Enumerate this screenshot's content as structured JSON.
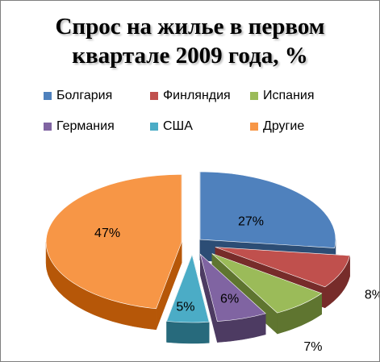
{
  "chart_data": {
    "type": "pie",
    "title": "Спрос на жилье в первом квартале 2009 года, %",
    "title_lines": [
      "Спрос на жилье в первом",
      "квартале 2009 года, %"
    ],
    "legend_position": "top",
    "categories": [
      "Болгария",
      "Финляндия",
      "Испания",
      "Германия",
      "США",
      "Другие"
    ],
    "values": [
      27,
      8,
      7,
      6,
      5,
      47
    ],
    "data_labels": [
      "27%",
      "8%",
      "7%",
      "6%",
      "5%",
      "47%"
    ],
    "colors": [
      "#4f81bd",
      "#c0504d",
      "#9bbb59",
      "#8064a2",
      "#4bacc6",
      "#f79646"
    ],
    "side_colors": [
      "#2c4d75",
      "#772c2a",
      "#5f7530",
      "#4d3b62",
      "#276a7c",
      "#b65708"
    ],
    "exploded": true,
    "style": "3d"
  }
}
